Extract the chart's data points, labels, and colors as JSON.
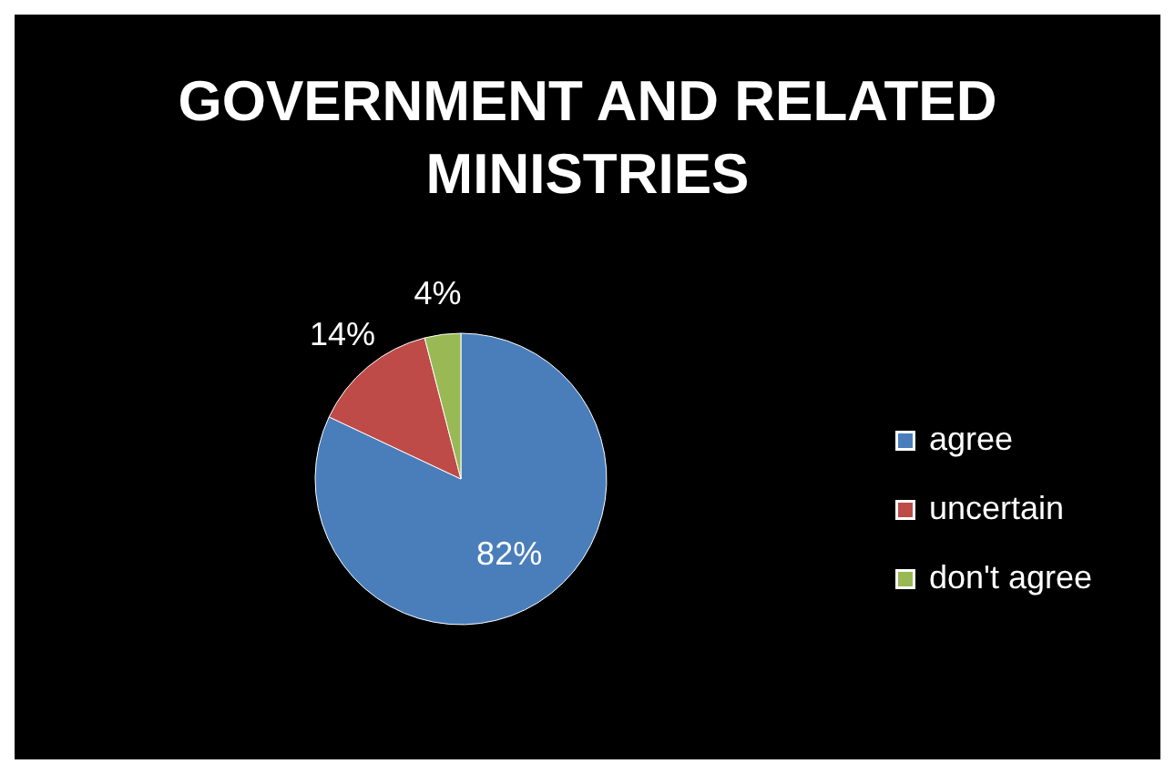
{
  "chart_data": {
    "type": "pie",
    "title": "GOVERNMENT AND RELATED MINISTRIES",
    "categories": [
      "agree",
      "uncertain",
      "don't agree"
    ],
    "values": [
      82,
      14,
      4
    ],
    "value_labels": [
      "82%",
      "14%",
      "4%"
    ],
    "colors": [
      "#4a7ebb",
      "#be4b48",
      "#98b954"
    ],
    "legend": "right"
  }
}
